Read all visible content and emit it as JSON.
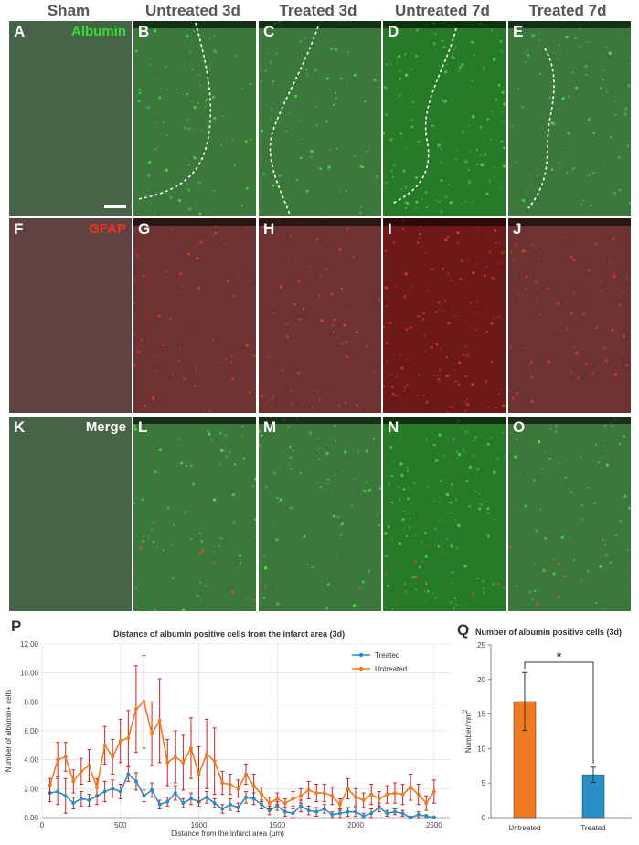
{
  "columns": [
    "Sham",
    "Untreated 3d",
    "Treated 3d",
    "Untreated 7d",
    "Treated 7d"
  ],
  "rows": [
    {
      "stain": "Albumin",
      "stain_color": "#33dd33",
      "labels": [
        "A",
        "B",
        "C",
        "D",
        "E"
      ]
    },
    {
      "stain": "GFAP",
      "stain_color": "#ee3322",
      "labels": [
        "F",
        "G",
        "H",
        "I",
        "J"
      ]
    },
    {
      "stain": "Merge",
      "stain_color": "#ffffff",
      "labels": [
        "K",
        "L",
        "M",
        "N",
        "O"
      ]
    }
  ],
  "colors": {
    "green": "#1f7a1f",
    "red": "#6b0f0f",
    "treated": "#2a8fc8",
    "untreated": "#f07a20",
    "error": "#cc2222"
  },
  "panel_p": {
    "label": "P",
    "chart_data": {
      "type": "line",
      "title": "Distance of albumin positive cells from the infarct area (3d)",
      "xlabel": "Distance from the infarct area (μm)",
      "ylabel": "Number of albumin+ cells",
      "xlim": [
        0,
        2600
      ],
      "ylim": [
        0,
        12
      ],
      "x_ticks": [
        0,
        500,
        1000,
        1500,
        2000,
        2500
      ],
      "y_ticks": [
        "0.00",
        "2.00",
        "4.00",
        "6.00",
        "8.00",
        "10.00",
        "12.00"
      ],
      "legend_position": "top-right",
      "grid": true,
      "x": [
        50,
        100,
        150,
        200,
        250,
        300,
        350,
        400,
        450,
        500,
        550,
        600,
        650,
        700,
        750,
        800,
        850,
        900,
        950,
        1000,
        1050,
        1100,
        1150,
        1200,
        1250,
        1300,
        1350,
        1400,
        1450,
        1500,
        1550,
        1600,
        1650,
        1700,
        1750,
        1800,
        1850,
        1900,
        1950,
        2000,
        2050,
        2100,
        2150,
        2200,
        2250,
        2300,
        2350,
        2400,
        2450,
        2500
      ],
      "series": [
        {
          "name": "Treated",
          "color": "#2a8fc8",
          "values": [
            1.7,
            1.8,
            1.5,
            1.0,
            1.3,
            1.2,
            1.5,
            1.8,
            2.0,
            1.8,
            3.0,
            2.5,
            1.5,
            1.9,
            0.9,
            1.1,
            1.7,
            1.0,
            1.3,
            1.1,
            1.4,
            1.0,
            0.6,
            0.9,
            0.7,
            1.4,
            1.3,
            0.9,
            0.5,
            0.8,
            0.4,
            0.3,
            0.8,
            0.5,
            0.4,
            0.6,
            0.2,
            0.3,
            0.4,
            0.4,
            0.1,
            0.3,
            0.7,
            0.3,
            0.4,
            0.3,
            0.0,
            0.2,
            0.1,
            0.0
          ],
          "errors": [
            0.6,
            0.9,
            1.2,
            0.4,
            0.5,
            0.4,
            0.6,
            0.7,
            0.6,
            0.5,
            0.5,
            0.6,
            0.4,
            0.5,
            0.3,
            0.3,
            0.5,
            0.3,
            0.4,
            0.3,
            0.4,
            0.3,
            0.3,
            0.4,
            0.3,
            0.4,
            0.4,
            0.3,
            0.3,
            0.3,
            0.3,
            0.3,
            0.4,
            0.3,
            0.3,
            0.3,
            0.2,
            0.3,
            0.3,
            0.3,
            0.2,
            0.3,
            0.3,
            0.2,
            0.2,
            0.2,
            0.1,
            0.2,
            0.1,
            0.1
          ]
        },
        {
          "name": "Untreated",
          "color": "#f07a20",
          "values": [
            2.2,
            4.0,
            4.2,
            2.5,
            3.2,
            3.6,
            2.1,
            5.0,
            4.2,
            5.3,
            5.5,
            7.5,
            8.0,
            5.8,
            6.7,
            3.8,
            4.2,
            3.8,
            4.8,
            3.0,
            4.4,
            3.9,
            2.4,
            2.3,
            2.0,
            3.0,
            2.2,
            1.6,
            1.0,
            1.3,
            1.0,
            1.3,
            1.5,
            1.9,
            1.7,
            1.7,
            1.5,
            0.9,
            2.0,
            1.4,
            1.2,
            1.6,
            1.3,
            1.6,
            1.7,
            1.6,
            2.1,
            1.6,
            1.0,
            1.8
          ],
          "errors": [
            0.5,
            1.2,
            1.0,
            0.8,
            0.9,
            1.1,
            0.6,
            1.3,
            1.2,
            1.5,
            1.9,
            3.0,
            3.2,
            2.2,
            2.9,
            1.6,
            1.8,
            1.9,
            2.1,
            1.9,
            2.4,
            2.3,
            0.8,
            0.7,
            0.6,
            0.7,
            0.8,
            0.5,
            0.4,
            0.4,
            0.3,
            0.5,
            0.5,
            0.6,
            0.6,
            0.6,
            0.6,
            0.4,
            0.7,
            0.6,
            0.5,
            0.7,
            0.5,
            0.6,
            0.7,
            0.7,
            0.9,
            0.7,
            0.5,
            0.8
          ]
        }
      ]
    }
  },
  "panel_q": {
    "label": "Q",
    "chart_data": {
      "type": "bar",
      "title": "Number of albumin positive cells (3d)",
      "ylabel_main": "Number/mm",
      "ylabel_sup": "2",
      "categories": [
        "Untreated",
        "Treated"
      ],
      "values": [
        16.8,
        6.2
      ],
      "errors": [
        4.2,
        1.1
      ],
      "colors": [
        "#f07a20",
        "#2a8fc8"
      ],
      "ylim": [
        0,
        25
      ],
      "y_ticks": [
        "0",
        "5",
        "10",
        "15",
        "20",
        "25"
      ],
      "significance": "*"
    }
  }
}
